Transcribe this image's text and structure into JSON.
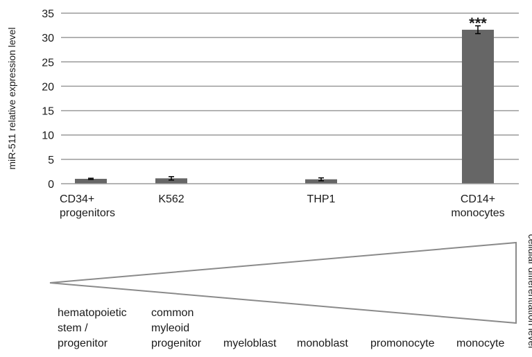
{
  "chart_data": {
    "type": "bar",
    "ylabel": "miR-511 relative expression level",
    "ylim": [
      0,
      35
    ],
    "yticks": [
      0,
      5,
      10,
      15,
      20,
      25,
      30,
      35
    ],
    "grid": true,
    "categories": [
      [
        "CD34+",
        "progenitors"
      ],
      [
        "K562"
      ],
      [
        "THP1"
      ],
      [
        "CD14+",
        "monocytes"
      ]
    ],
    "values": [
      1.0,
      1.1,
      0.9,
      31.6
    ],
    "errors": [
      0.12,
      0.35,
      0.3,
      0.8
    ],
    "significance": [
      "",
      "",
      "",
      "***"
    ],
    "bar_color": "#666666"
  },
  "differentiation": {
    "side_label": "cellular differentiation level",
    "stages": [
      [
        "hematopoietic",
        "stem /",
        "progenitor"
      ],
      [
        "common",
        "myleoid",
        "progenitor"
      ],
      [
        "myeloblast"
      ],
      [
        "monoblast"
      ],
      [
        "promonocyte"
      ],
      [
        "monocyte"
      ]
    ]
  }
}
